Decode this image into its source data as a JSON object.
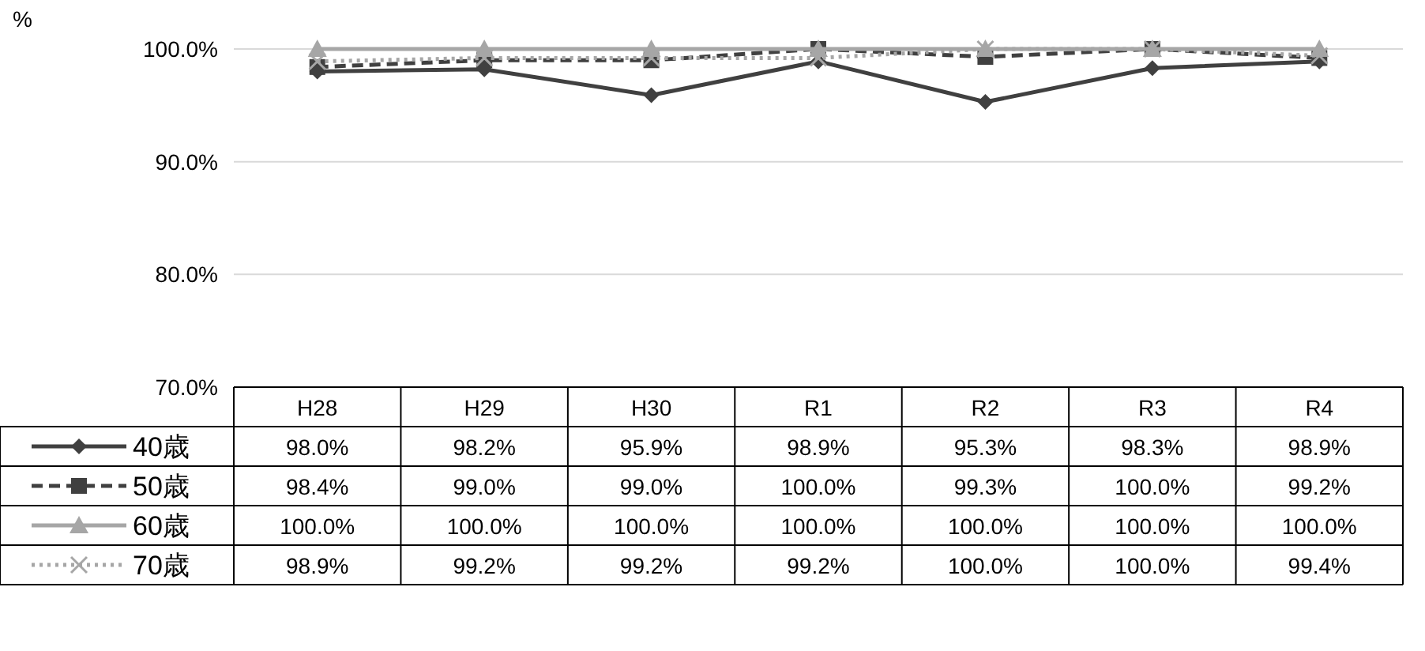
{
  "chart_data": {
    "type": "line",
    "annotations": [
      "%"
    ],
    "categories": [
      "H28",
      "H29",
      "H30",
      "R1",
      "R2",
      "R3",
      "R4"
    ],
    "ylim": [
      70,
      100
    ],
    "yticks": [
      {
        "value": 70,
        "label": "70.0%"
      },
      {
        "value": 80,
        "label": "80.0%"
      },
      {
        "value": 90,
        "label": "90.0%"
      },
      {
        "value": 100,
        "label": "100.0%"
      }
    ],
    "grid": "y",
    "legend": "left",
    "series": [
      {
        "name": "40歳",
        "color": "#404040",
        "marker": "diamond",
        "line_style": "solid",
        "values": [
          98.0,
          98.2,
          95.9,
          98.9,
          95.3,
          98.3,
          98.9
        ],
        "value_labels": [
          "98.0%",
          "98.2%",
          "95.9%",
          "98.9%",
          "95.3%",
          "98.3%",
          "98.9%"
        ]
      },
      {
        "name": "50歳",
        "color": "#404040",
        "marker": "square",
        "line_style": "dashed",
        "values": [
          98.4,
          99.0,
          99.0,
          100.0,
          99.3,
          100.0,
          99.2
        ],
        "value_labels": [
          "98.4%",
          "99.0%",
          "99.0%",
          "100.0%",
          "99.3%",
          "100.0%",
          "99.2%"
        ]
      },
      {
        "name": "60歳",
        "color": "#a6a6a6",
        "marker": "triangle",
        "line_style": "solid",
        "values": [
          100.0,
          100.0,
          100.0,
          100.0,
          100.0,
          100.0,
          100.0
        ],
        "value_labels": [
          "100.0%",
          "100.0%",
          "100.0%",
          "100.0%",
          "100.0%",
          "100.0%",
          "100.0%"
        ]
      },
      {
        "name": "70歳",
        "color": "#a6a6a6",
        "marker": "cross",
        "line_style": "dotted",
        "values": [
          98.9,
          99.2,
          99.2,
          99.2,
          100.0,
          100.0,
          99.4
        ],
        "value_labels": [
          "98.9%",
          "99.2%",
          "99.2%",
          "99.2%",
          "100.0%",
          "100.0%",
          "99.4%"
        ]
      }
    ]
  }
}
